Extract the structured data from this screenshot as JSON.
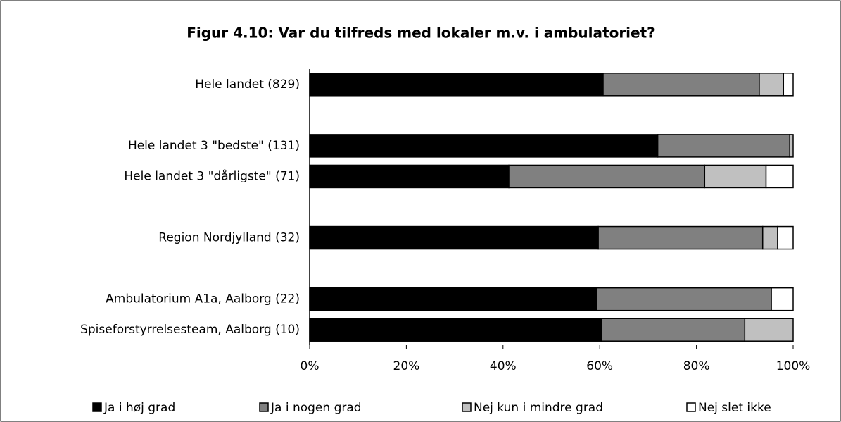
{
  "chart_data": {
    "type": "stacked-bar-horizontal",
    "title": "Figur 4.10: Var du tilfreds med lokaler m.v. i ambulatoriet?",
    "categories": [
      "Hele landet  (829)",
      null,
      "Hele landet 3 \"bedste\" (131)",
      "Hele landet 3 \"dårligste\" (71)",
      null,
      "Region Nordjylland (32)",
      null,
      "Ambulatorium A1a, Aalborg (22)",
      "Spiseforstyrrelsesteam, Aalborg (10)"
    ],
    "series": [
      {
        "name": "Ja i høj grad",
        "color": "#000000",
        "values": [
          60.7,
          null,
          72,
          41.2,
          null,
          59.7,
          null,
          59.4,
          60.3
        ]
      },
      {
        "name": "Ja i nogen grad",
        "color": "#808080",
        "values": [
          32.3,
          null,
          27.3,
          40.5,
          null,
          34,
          null,
          36.1,
          29.7
        ]
      },
      {
        "name": "Nej kun i mindre grad",
        "color": "#c0c0c0",
        "values": [
          5,
          null,
          0.7,
          12.7,
          null,
          3.1,
          null,
          0,
          10
        ]
      },
      {
        "name": "Nej slet ikke",
        "color": "#ffffff",
        "values": [
          2,
          null,
          0,
          5.6,
          null,
          3.2,
          null,
          4.5,
          0
        ]
      }
    ],
    "xlim": [
      0,
      100
    ],
    "xticks": [
      {
        "value": 0,
        "label": "0%"
      },
      {
        "value": 20,
        "label": "20%"
      },
      {
        "value": 40,
        "label": "40%"
      },
      {
        "value": 60,
        "label": "60%"
      },
      {
        "value": 80,
        "label": "80%"
      },
      {
        "value": 100,
        "label": "100%"
      }
    ],
    "legend": "bottom"
  }
}
